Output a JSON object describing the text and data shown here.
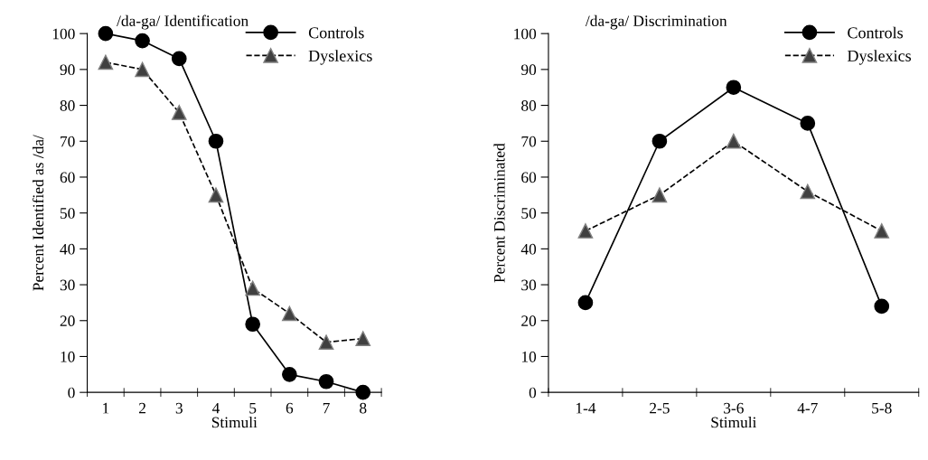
{
  "chart_data": [
    {
      "type": "line",
      "title": "/da-ga/ Identification",
      "xlabel": "Stimuli",
      "ylabel": "Percent Identified as /da/",
      "categories": [
        "1",
        "2",
        "3",
        "4",
        "5",
        "6",
        "7",
        "8"
      ],
      "series": [
        {
          "name": "Controls",
          "color": "#000000",
          "marker": "circle",
          "line_style": "solid",
          "values": [
            100,
            98,
            93,
            70,
            19,
            5,
            3,
            0
          ]
        },
        {
          "name": "Dyslexics",
          "color": "#404040",
          "marker": "triangle",
          "line_style": "dashed",
          "values": [
            92,
            90,
            78,
            55,
            29,
            22,
            14,
            15
          ]
        }
      ],
      "ylim": [
        0,
        100
      ],
      "yticks": [
        0,
        10,
        20,
        30,
        40,
        50,
        60,
        70,
        80,
        90,
        100
      ],
      "grid": false,
      "legend": "top right"
    },
    {
      "type": "line",
      "title": "/da-ga/ Discrimination",
      "xlabel": "Stimuli",
      "ylabel": "Percent Discriminated",
      "categories": [
        "1-4",
        "2-5",
        "3-6",
        "4-7",
        "5-8"
      ],
      "series": [
        {
          "name": "Controls",
          "color": "#000000",
          "marker": "circle",
          "line_style": "solid",
          "values": [
            25,
            70,
            85,
            75,
            24
          ]
        },
        {
          "name": "Dyslexics",
          "color": "#404040",
          "marker": "triangle",
          "line_style": "dashed",
          "values": [
            45,
            55,
            70,
            56,
            45
          ]
        }
      ],
      "ylim": [
        0,
        100
      ],
      "yticks": [
        0,
        10,
        20,
        30,
        40,
        50,
        60,
        70,
        80,
        90,
        100
      ],
      "grid": false,
      "legend": "top right"
    }
  ]
}
